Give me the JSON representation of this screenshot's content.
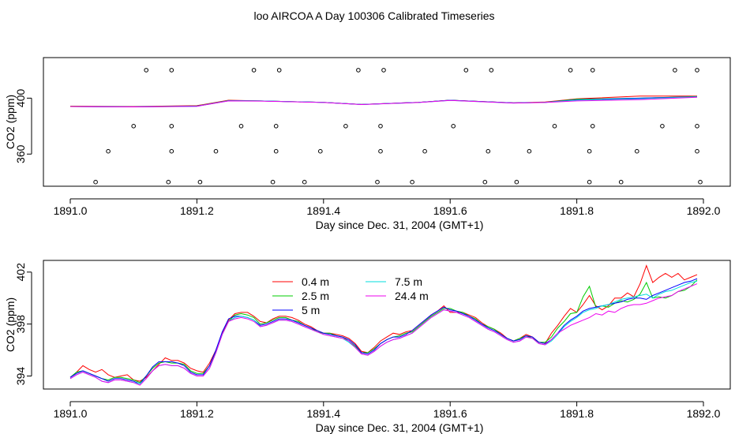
{
  "figure": {
    "title": "loo AIRCOA A  Day 100306  Calibrated Timeseries"
  },
  "colors": {
    "0.4 m": "#ff0000",
    "2.5 m": "#00cc00",
    "5 m": "#0000ff",
    "7.5 m": "#00dddd",
    "24.4 m": "#ee00ee"
  },
  "chart_data": [
    {
      "type": "line",
      "xlabel": "Day since Dec. 31, 2004 (GMT+1)",
      "ylabel": "CO2 (ppm)",
      "xlim": [
        1891.0,
        1892.0
      ],
      "ylim": [
        337,
        429
      ],
      "xticks": [
        "1891.0",
        "1891.2",
        "1891.4",
        "1891.6",
        "1891.8",
        "1892.0"
      ],
      "xtick_values": [
        1891.0,
        1891.2,
        1891.4,
        1891.6,
        1891.8,
        1892.0
      ],
      "yticks": [
        "360",
        "400"
      ],
      "ytick_values": [
        360,
        400
      ],
      "series": [
        {
          "color": "#ff0000",
          "x": [
            1891.0,
            1891.1,
            1891.2,
            1891.25,
            1891.3,
            1891.4,
            1891.46,
            1891.55,
            1891.6,
            1891.7,
            1891.75,
            1891.8,
            1891.9,
            1891.99
          ],
          "y": [
            394.3,
            394.0,
            394.6,
            398.5,
            398.0,
            397.0,
            395.5,
            397.0,
            398.5,
            396.6,
            397.2,
            399.5,
            401.5,
            401.5
          ]
        },
        {
          "color": "#00cc00",
          "x": [
            1891.0,
            1891.1,
            1891.2,
            1891.25,
            1891.3,
            1891.4,
            1891.46,
            1891.55,
            1891.6,
            1891.7,
            1891.75,
            1891.8,
            1891.9,
            1891.99
          ],
          "y": [
            394.1,
            393.8,
            394.4,
            398.3,
            398.0,
            397.0,
            395.5,
            397.0,
            398.5,
            396.6,
            397.0,
            399.2,
            400.0,
            401.2
          ]
        },
        {
          "color": "#0000ff",
          "x": [
            1891.0,
            1891.1,
            1891.2,
            1891.25,
            1891.3,
            1891.4,
            1891.46,
            1891.55,
            1891.6,
            1891.7,
            1891.75,
            1891.8,
            1891.9,
            1891.99
          ],
          "y": [
            394.0,
            393.8,
            394.3,
            398.2,
            398.0,
            397.0,
            395.5,
            397.0,
            398.5,
            396.6,
            397.0,
            398.8,
            400.0,
            401.0
          ]
        },
        {
          "color": "#00dddd",
          "x": [
            1891.0,
            1891.1,
            1891.2,
            1891.25,
            1891.3,
            1891.4,
            1891.46,
            1891.55,
            1891.6,
            1891.7,
            1891.75,
            1891.8,
            1891.9,
            1891.99
          ],
          "y": [
            394.0,
            393.7,
            394.2,
            398.1,
            398.0,
            397.0,
            395.4,
            396.9,
            398.4,
            396.5,
            397.0,
            398.6,
            399.6,
            400.9
          ]
        },
        {
          "color": "#ee00ee",
          "x": [
            1891.0,
            1891.1,
            1891.2,
            1891.25,
            1891.3,
            1891.4,
            1891.46,
            1891.55,
            1891.6,
            1891.7,
            1891.75,
            1891.8,
            1891.9,
            1891.99
          ],
          "y": [
            394.0,
            393.7,
            394.2,
            398.0,
            397.9,
            396.9,
            395.4,
            396.9,
            398.4,
            396.5,
            396.9,
            398.0,
            399.0,
            400.6
          ]
        }
      ],
      "points": {
        "x": [
          1891.04,
          1891.06,
          1891.1,
          1891.12,
          1891.155,
          1891.16,
          1891.16,
          1891.16,
          1891.205,
          1891.23,
          1891.27,
          1891.29,
          1891.32,
          1891.325,
          1891.325,
          1891.33,
          1891.37,
          1891.395,
          1891.435,
          1891.455,
          1891.485,
          1891.49,
          1891.49,
          1891.495,
          1891.54,
          1891.56,
          1891.605,
          1891.625,
          1891.655,
          1891.66,
          1891.665,
          1891.705,
          1891.725,
          1891.765,
          1891.79,
          1891.82,
          1891.82,
          1891.825,
          1891.825,
          1891.87,
          1891.895,
          1891.935,
          1891.955,
          1891.99,
          1891.99,
          1891.99,
          1891.995
        ],
        "y": [
          340,
          362,
          380,
          420,
          340,
          362,
          380,
          420,
          340,
          362,
          380,
          420,
          340,
          362,
          380,
          420,
          340,
          362,
          380,
          420,
          340,
          362,
          380,
          420,
          340,
          362,
          380,
          420,
          340,
          362,
          420,
          340,
          362,
          380,
          420,
          340,
          362,
          380,
          420,
          340,
          362,
          380,
          420,
          362,
          380,
          420,
          340
        ]
      }
    },
    {
      "type": "line",
      "xlabel": "Day since Dec. 31, 2004 (GMT+1)",
      "ylabel": "CO2 (ppm)",
      "xlim": [
        1891.0,
        1892.0
      ],
      "ylim": [
        393.0,
        402.9
      ],
      "xticks": [
        "1891.0",
        "1891.2",
        "1891.4",
        "1891.6",
        "1891.8",
        "1892.0"
      ],
      "xtick_values": [
        1891.0,
        1891.2,
        1891.4,
        1891.6,
        1891.8,
        1892.0
      ],
      "yticks": [
        "394",
        "398",
        "402"
      ],
      "ytick_values": [
        394,
        398,
        402
      ],
      "legend": {
        "placement": "top-center",
        "entries": [
          "0.4 m",
          "2.5 m",
          "5 m",
          "7.5 m",
          "24.4 m"
        ]
      },
      "x": [
        1891.0,
        1891.01,
        1891.02,
        1891.03,
        1891.04,
        1891.05,
        1891.06,
        1891.07,
        1891.08,
        1891.09,
        1891.1,
        1891.11,
        1891.12,
        1891.13,
        1891.14,
        1891.15,
        1891.16,
        1891.17,
        1891.18,
        1891.19,
        1891.2,
        1891.21,
        1891.22,
        1891.23,
        1891.24,
        1891.25,
        1891.26,
        1891.27,
        1891.28,
        1891.29,
        1891.3,
        1891.31,
        1891.32,
        1891.33,
        1891.34,
        1891.35,
        1891.36,
        1891.37,
        1891.38,
        1891.39,
        1891.4,
        1891.41,
        1891.42,
        1891.43,
        1891.44,
        1891.45,
        1891.46,
        1891.47,
        1891.48,
        1891.49,
        1891.5,
        1891.51,
        1891.52,
        1891.53,
        1891.54,
        1891.55,
        1891.56,
        1891.57,
        1891.58,
        1891.59,
        1891.6,
        1891.61,
        1891.62,
        1891.63,
        1891.64,
        1891.65,
        1891.66,
        1891.67,
        1891.68,
        1891.69,
        1891.7,
        1891.71,
        1891.72,
        1891.73,
        1891.74,
        1891.75,
        1891.76,
        1891.77,
        1891.78,
        1891.79,
        1891.8,
        1891.81,
        1891.82,
        1891.83,
        1891.84,
        1891.85,
        1891.86,
        1891.87,
        1891.88,
        1891.89,
        1891.9,
        1891.91,
        1891.92,
        1891.93,
        1891.94,
        1891.95,
        1891.96,
        1891.97,
        1891.98,
        1891.99
      ],
      "series": [
        {
          "name": "0.4 m",
          "values": [
            393.9,
            394.3,
            394.8,
            394.5,
            394.3,
            394.5,
            394.1,
            393.9,
            394.0,
            394.1,
            393.7,
            393.6,
            393.9,
            394.4,
            394.9,
            395.4,
            395.2,
            395.2,
            395.0,
            394.6,
            394.4,
            394.3,
            395.0,
            396.0,
            397.3,
            398.3,
            398.8,
            398.9,
            398.9,
            398.6,
            398.2,
            398.1,
            398.4,
            398.6,
            398.6,
            398.5,
            398.3,
            398.0,
            397.8,
            397.5,
            397.3,
            397.3,
            397.2,
            397.1,
            396.9,
            396.5,
            395.9,
            395.8,
            396.2,
            396.7,
            397.0,
            397.3,
            397.2,
            397.4,
            397.5,
            397.9,
            398.3,
            398.7,
            399.0,
            399.4,
            398.9,
            398.9,
            398.9,
            398.7,
            398.5,
            398.1,
            397.8,
            397.6,
            397.3,
            396.9,
            396.7,
            396.9,
            397.2,
            397.0,
            396.6,
            396.5,
            397.3,
            397.9,
            398.6,
            399.2,
            398.9,
            399.5,
            400.2,
            399.4,
            399.1,
            399.4,
            400.0,
            400.0,
            400.4,
            400.1,
            401.1,
            402.5,
            401.2,
            401.6,
            401.9,
            401.6,
            401.9,
            401.4,
            401.6,
            401.8
          ]
        },
        {
          "name": "2.5 m",
          "values": [
            393.9,
            394.3,
            394.4,
            394.2,
            394.0,
            393.8,
            393.7,
            393.9,
            393.9,
            393.8,
            393.7,
            393.5,
            394.0,
            394.6,
            395.0,
            395.1,
            395.0,
            395.0,
            394.9,
            394.4,
            394.2,
            394.2,
            394.8,
            395.9,
            397.2,
            398.2,
            398.7,
            398.8,
            398.7,
            398.5,
            398.0,
            398.1,
            398.3,
            398.5,
            398.5,
            398.3,
            398.2,
            397.9,
            397.7,
            397.4,
            397.3,
            397.3,
            397.1,
            397.0,
            396.7,
            396.3,
            395.8,
            395.8,
            396.1,
            396.5,
            396.8,
            397.0,
            397.1,
            397.3,
            397.4,
            397.8,
            398.2,
            398.6,
            398.9,
            399.2,
            399.2,
            399.0,
            398.9,
            398.6,
            398.4,
            398.0,
            397.8,
            397.6,
            397.2,
            396.9,
            396.7,
            396.9,
            397.1,
            396.9,
            396.6,
            396.6,
            397.0,
            397.7,
            398.2,
            398.8,
            398.9,
            400.1,
            400.9,
            399.3,
            399.4,
            399.3,
            399.6,
            399.8,
            399.7,
            399.9,
            400.3,
            401.2,
            400.0,
            400.1,
            400.0,
            400.2,
            400.5,
            400.6,
            400.9,
            401.4
          ]
        },
        {
          "name": "5 m",
          "values": [
            393.9,
            394.2,
            394.4,
            394.2,
            394.0,
            393.8,
            393.6,
            393.8,
            393.8,
            393.7,
            393.6,
            393.4,
            394.0,
            394.7,
            395.1,
            395.1,
            395.1,
            395.0,
            394.8,
            394.3,
            394.1,
            394.1,
            394.8,
            396.0,
            397.4,
            398.4,
            398.6,
            398.6,
            398.5,
            398.3,
            397.9,
            398.0,
            398.2,
            398.4,
            398.4,
            398.3,
            398.1,
            397.9,
            397.7,
            397.5,
            397.3,
            397.2,
            397.1,
            397.0,
            396.8,
            396.4,
            395.8,
            395.7,
            396.0,
            396.5,
            396.8,
            397.0,
            397.0,
            397.2,
            397.5,
            397.9,
            398.3,
            398.7,
            399.0,
            399.3,
            399.1,
            399.0,
            398.8,
            398.6,
            398.3,
            398.0,
            397.7,
            397.5,
            397.2,
            396.9,
            396.7,
            396.8,
            397.1,
            397.0,
            396.6,
            396.5,
            396.8,
            397.3,
            397.9,
            398.3,
            398.6,
            399.0,
            399.2,
            399.3,
            399.4,
            399.5,
            399.6,
            399.7,
            399.9,
            400.0,
            400.0,
            399.9,
            400.2,
            400.4,
            400.6,
            400.8,
            401.0,
            401.2,
            401.3,
            401.5
          ]
        },
        {
          "name": "7.5 m",
          "values": [
            393.8,
            394.1,
            394.3,
            394.1,
            393.9,
            393.6,
            393.5,
            393.7,
            393.7,
            393.6,
            393.5,
            393.4,
            393.8,
            394.4,
            394.8,
            394.9,
            394.8,
            394.8,
            394.6,
            394.2,
            394.0,
            394.0,
            394.6,
            395.8,
            397.2,
            398.2,
            398.5,
            398.6,
            398.5,
            398.3,
            397.8,
            397.9,
            398.1,
            398.3,
            398.3,
            398.2,
            398.0,
            397.8,
            397.6,
            397.4,
            397.2,
            397.1,
            397.0,
            396.9,
            396.6,
            396.2,
            395.7,
            395.6,
            395.9,
            396.3,
            396.6,
            396.8,
            396.9,
            397.1,
            397.3,
            397.7,
            398.1,
            398.5,
            398.8,
            399.1,
            399.0,
            398.9,
            398.7,
            398.5,
            398.2,
            397.9,
            397.6,
            397.4,
            397.1,
            396.8,
            396.6,
            396.7,
            397.0,
            396.9,
            396.5,
            396.4,
            396.7,
            397.2,
            397.8,
            398.2,
            398.5,
            398.9,
            399.1,
            399.2,
            399.4,
            399.5,
            399.7,
            399.9,
            400.0,
            400.1,
            400.2,
            400.3,
            400.0,
            400.3,
            400.5,
            400.6,
            400.8,
            401.0,
            401.2,
            401.3
          ]
        },
        {
          "name": "24.4 m",
          "values": [
            393.8,
            394.1,
            394.3,
            394.1,
            393.9,
            393.6,
            393.5,
            393.7,
            393.7,
            393.6,
            393.5,
            393.3,
            393.8,
            394.4,
            394.8,
            394.9,
            394.8,
            394.8,
            394.6,
            394.2,
            394.0,
            394.0,
            394.6,
            395.8,
            397.2,
            398.2,
            398.4,
            398.5,
            398.4,
            398.2,
            397.8,
            397.9,
            398.1,
            398.3,
            398.3,
            398.2,
            398.0,
            397.8,
            397.6,
            397.4,
            397.2,
            397.1,
            397.0,
            396.9,
            396.7,
            396.2,
            395.7,
            395.6,
            395.9,
            396.3,
            396.6,
            396.8,
            396.9,
            397.1,
            397.3,
            397.7,
            398.1,
            398.5,
            398.8,
            399.1,
            399.0,
            398.9,
            398.7,
            398.5,
            398.2,
            397.9,
            397.6,
            397.4,
            397.1,
            396.8,
            396.6,
            396.7,
            397.0,
            396.9,
            396.5,
            396.4,
            396.8,
            397.3,
            397.6,
            397.9,
            398.1,
            398.3,
            398.5,
            398.8,
            398.7,
            399.0,
            398.9,
            399.2,
            399.4,
            399.5,
            399.5,
            399.6,
            399.8,
            400.0,
            400.1,
            400.2,
            400.5,
            400.7,
            400.9,
            401.1
          ]
        }
      ]
    }
  ]
}
